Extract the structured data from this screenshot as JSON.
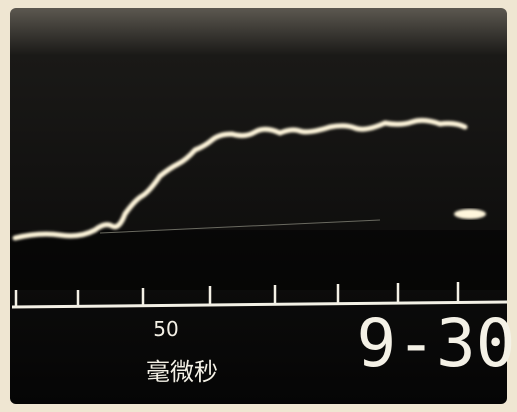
{
  "scale_label": "50",
  "unit_label": "毫微秒",
  "frame_label": "9-30"
}
